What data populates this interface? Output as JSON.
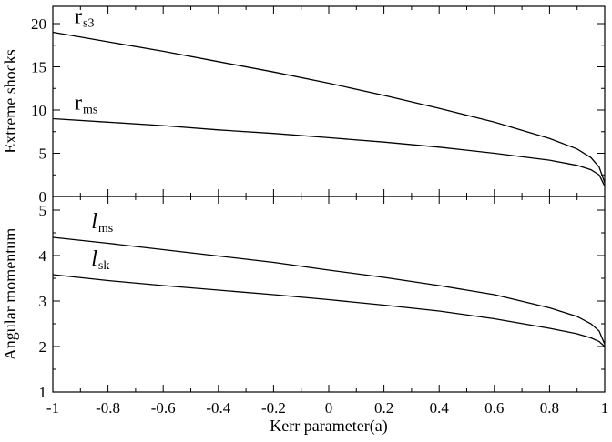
{
  "chart_data": [
    {
      "type": "line",
      "id": "top",
      "title": "",
      "xlabel": "",
      "ylabel": "Extreme shocks",
      "xlim": [
        -1,
        1
      ],
      "ylim": [
        0,
        22
      ],
      "xticks": [
        -1,
        -0.8,
        -0.6,
        -0.4,
        -0.2,
        0,
        0.2,
        0.4,
        0.6,
        0.8,
        1
      ],
      "yticks": [
        0,
        5,
        10,
        15,
        20
      ],
      "grid": false,
      "series": [
        {
          "name_main": "r",
          "name_sub": "s3",
          "x": [
            -1,
            -0.8,
            -0.6,
            -0.4,
            -0.2,
            0,
            0.2,
            0.4,
            0.6,
            0.8,
            0.9,
            0.95,
            0.98,
            1
          ],
          "y": [
            19.0,
            17.9,
            16.8,
            15.6,
            14.4,
            13.1,
            11.7,
            10.2,
            8.6,
            6.7,
            5.5,
            4.5,
            3.4,
            1.6
          ]
        },
        {
          "name_main": "r",
          "name_sub": "ms",
          "x": [
            -1,
            -0.8,
            -0.6,
            -0.4,
            -0.2,
            0,
            0.2,
            0.4,
            0.6,
            0.8,
            0.9,
            0.95,
            0.98,
            1
          ],
          "y": [
            9.0,
            8.6,
            8.2,
            7.7,
            7.3,
            6.8,
            6.3,
            5.7,
            5.0,
            4.2,
            3.6,
            3.1,
            2.5,
            1.2
          ]
        }
      ]
    },
    {
      "type": "line",
      "id": "bottom",
      "title": "",
      "xlabel": "Kerr parameter(a)",
      "ylabel": "Angular momentum",
      "xlim": [
        -1,
        1
      ],
      "ylim": [
        1,
        5.3
      ],
      "xticks": [
        -1,
        -0.8,
        -0.6,
        -0.4,
        -0.2,
        0,
        0.2,
        0.4,
        0.6,
        0.8,
        1
      ],
      "xticklabels": [
        "-1",
        "-0.8",
        "-0.6",
        "-0.4",
        "-0.2",
        "0",
        "0.2",
        "0.4",
        "0.6",
        "0.8",
        "1"
      ],
      "yticks": [
        1,
        2,
        3,
        4,
        5
      ],
      "grid": false,
      "series": [
        {
          "name_main": "l",
          "name_sub": "ms",
          "x": [
            -1,
            -0.8,
            -0.6,
            -0.4,
            -0.2,
            0,
            0.2,
            0.4,
            0.6,
            0.8,
            0.9,
            0.95,
            0.98,
            1
          ],
          "y": [
            4.4,
            4.27,
            4.13,
            3.99,
            3.85,
            3.68,
            3.52,
            3.34,
            3.14,
            2.85,
            2.66,
            2.5,
            2.34,
            2.05
          ]
        },
        {
          "name_main": "l",
          "name_sub": "sk",
          "x": [
            -1,
            -0.8,
            -0.6,
            -0.4,
            -0.2,
            0,
            0.2,
            0.4,
            0.6,
            0.8,
            0.9,
            0.95,
            0.98,
            1
          ],
          "y": [
            3.58,
            3.45,
            3.34,
            3.24,
            3.14,
            3.03,
            2.91,
            2.78,
            2.61,
            2.4,
            2.28,
            2.19,
            2.11,
            2.0
          ]
        }
      ]
    }
  ]
}
